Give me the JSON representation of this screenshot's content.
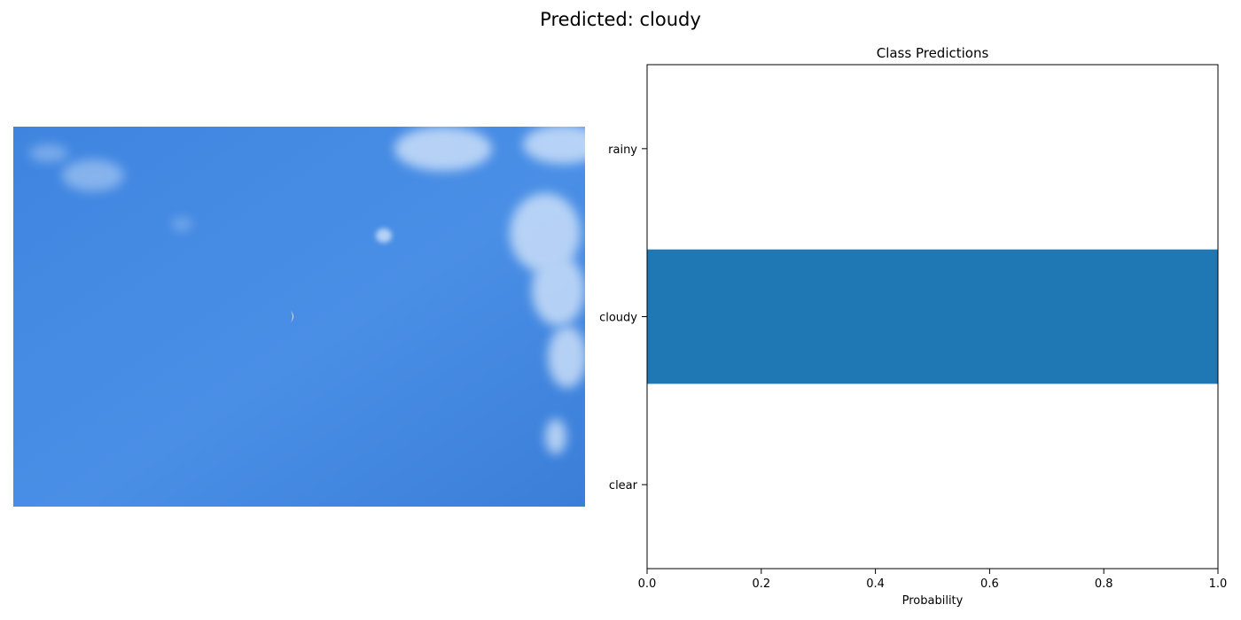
{
  "figure": {
    "suptitle": "Predicted: cloudy"
  },
  "image_panel": {
    "subject": "blue sky with wispy white clouds",
    "sky_color": "#4a8be3"
  },
  "chart_data": {
    "type": "bar",
    "orientation": "horizontal",
    "title": "Class Predictions",
    "categories": [
      "clear",
      "cloudy",
      "rainy"
    ],
    "values": [
      0.0,
      1.0,
      0.0
    ],
    "xlabel": "Probability",
    "ylabel": "",
    "xlim": [
      0,
      1
    ],
    "xticks": [
      "0.0",
      "0.2",
      "0.4",
      "0.6",
      "0.8",
      "1.0"
    ],
    "grid": false,
    "bar_color": "#1f77b4"
  }
}
